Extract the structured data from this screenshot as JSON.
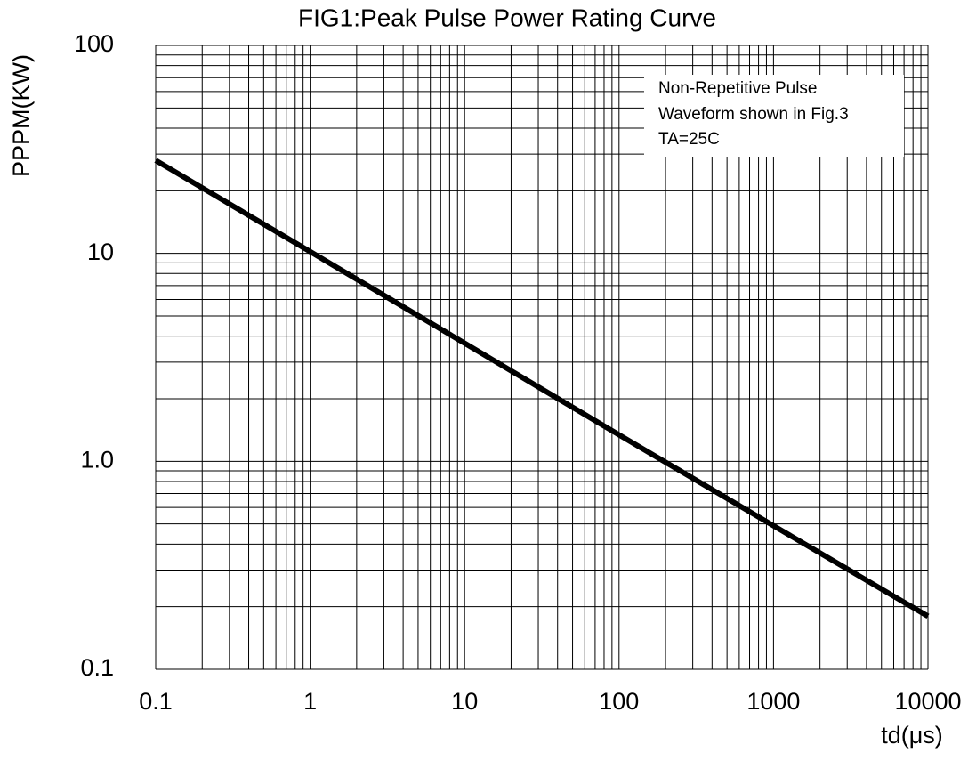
{
  "chart_data": {
    "type": "line",
    "title": "FIG1:Peak Pulse Power Rating Curve",
    "x_label": "td(μs)",
    "y_label": "PPPM(KW)",
    "annotation": [
      "Non-Repetitive Pulse",
      "Waveform shown in Fig.3",
      "TA=25C"
    ],
    "log_x": true,
    "log_y": true,
    "grid": true,
    "x": [
      0.1,
      1,
      10,
      100,
      1000,
      10000
    ],
    "series": [
      {
        "color": "#000000",
        "values": [
          28,
          10.2,
          3.7,
          1.34,
          0.49,
          0.18
        ]
      }
    ],
    "xlim": [
      0.1,
      10000
    ],
    "ylim": [
      0.1,
      100
    ],
    "xticks": [
      0.1,
      1,
      10,
      100,
      1000,
      10000
    ],
    "yticks": [
      0.1,
      {
        "value": 1,
        "label": "1.0"
      },
      10,
      100
    ],
    "xminorticks": [
      0.2,
      0.3,
      0.4,
      0.5,
      0.6,
      0.7,
      0.8,
      0.9,
      2,
      3,
      4,
      5,
      6,
      7,
      8,
      9,
      20,
      30,
      40,
      50,
      60,
      70,
      80,
      90,
      200,
      300,
      400,
      500,
      600,
      700,
      800,
      900,
      2000,
      3000,
      4000,
      5000,
      6000,
      7000,
      8000,
      9000
    ],
    "yminorticks": [
      0.2,
      0.3,
      0.4,
      0.5,
      0.6,
      0.7,
      0.8,
      0.9,
      2,
      3,
      4,
      5,
      6,
      7,
      8,
      9,
      20,
      30,
      40,
      50,
      60,
      70,
      80,
      90
    ]
  }
}
